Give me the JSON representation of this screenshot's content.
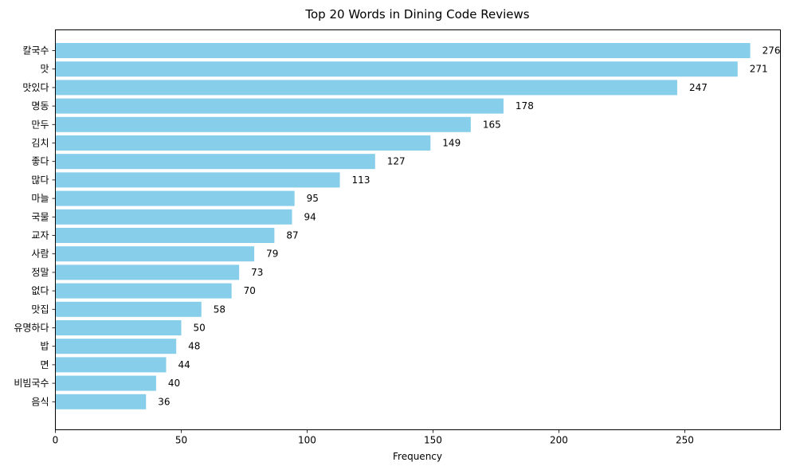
{
  "chart_data": {
    "type": "bar",
    "orientation": "horizontal",
    "title": "Top 20 Words in Dining Code Reviews",
    "xlabel": "Frequency",
    "ylabel": "",
    "xlim": [
      0,
      288
    ],
    "xticks": [
      0,
      50,
      100,
      150,
      200,
      250
    ],
    "grid": false,
    "bar_color": "#87ceeb",
    "categories": [
      "칼국수",
      "맛",
      "맛있다",
      "명동",
      "만두",
      "김치",
      "좋다",
      "많다",
      "마늘",
      "국물",
      "교자",
      "사람",
      "정말",
      "없다",
      "맛집",
      "유명하다",
      "밥",
      "면",
      "비빔국수",
      "음식"
    ],
    "values": [
      276,
      271,
      247,
      178,
      165,
      149,
      127,
      113,
      95,
      94,
      87,
      79,
      73,
      70,
      58,
      50,
      48,
      44,
      40,
      36
    ]
  }
}
